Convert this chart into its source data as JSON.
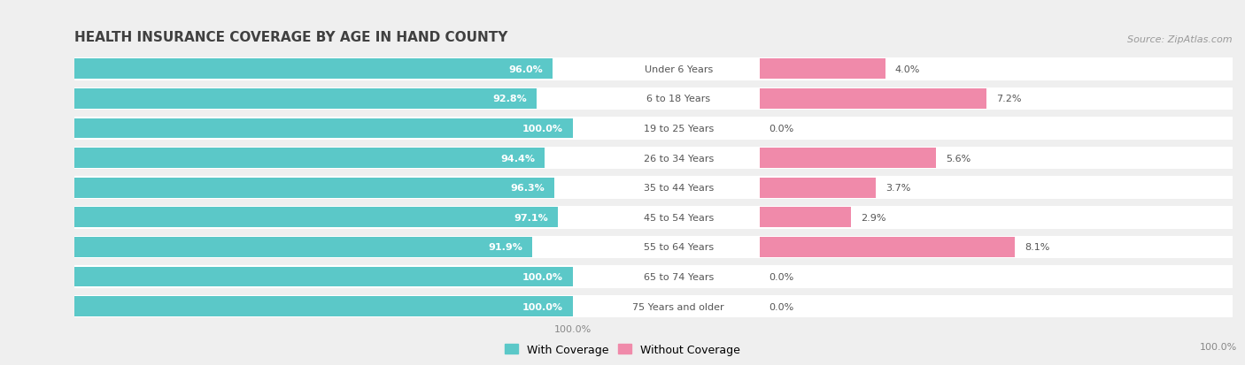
{
  "title": "HEALTH INSURANCE COVERAGE BY AGE IN HAND COUNTY",
  "source": "Source: ZipAtlas.com",
  "categories": [
    "Under 6 Years",
    "6 to 18 Years",
    "19 to 25 Years",
    "26 to 34 Years",
    "35 to 44 Years",
    "45 to 54 Years",
    "55 to 64 Years",
    "65 to 74 Years",
    "75 Years and older"
  ],
  "with_coverage": [
    96.0,
    92.8,
    100.0,
    94.4,
    96.3,
    97.1,
    91.9,
    100.0,
    100.0
  ],
  "without_coverage": [
    4.0,
    7.2,
    0.0,
    5.6,
    3.7,
    2.9,
    8.1,
    0.0,
    0.0
  ],
  "color_with": "#5bc8c8",
  "color_without": "#f08aaa",
  "bg_color": "#efefef",
  "bar_bg_color": "#ffffff",
  "title_color": "#404040",
  "label_color": "#555555",
  "tick_color": "#888888",
  "source_color": "#999999",
  "legend_with": "With Coverage",
  "legend_without": "Without Coverage",
  "figsize": [
    14.06,
    4.14
  ],
  "dpi": 100
}
